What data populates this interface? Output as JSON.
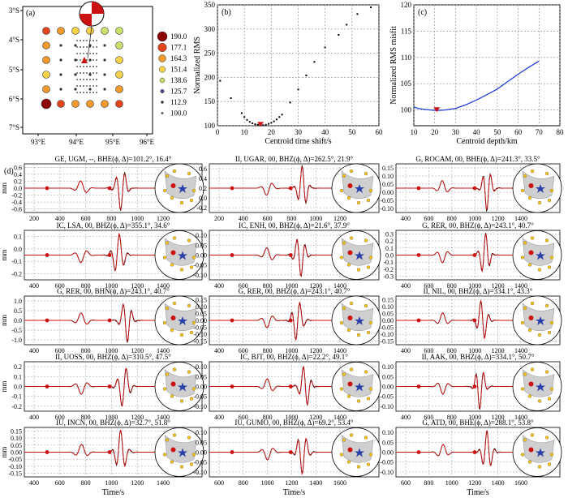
{
  "colors": {
    "red": "#cc1111",
    "black": "#000000",
    "blue": "#1f3fd6",
    "land": "#cfcfcf",
    "dot": "#f2c21a",
    "star": "#2b3fa8",
    "pink": "#f2a0b0"
  },
  "panel_a": {
    "label": "(a)",
    "lat_ticks": [
      "3°S",
      "4°S",
      "5°S",
      "6°S",
      "7°S"
    ],
    "lon_ticks": [
      "93°E",
      "94°E",
      "95°E",
      "96°E"
    ],
    "legend": [
      "190.0",
      "177.1",
      "164.3",
      "151.4",
      "138.6",
      "125.7",
      "112.9",
      "100.0"
    ],
    "legend_colors": [
      "#8b0000",
      "#e2451e",
      "#f39a2c",
      "#f6d44a",
      "#c9e06a",
      "#5a4a9a",
      "#222222",
      "#666666"
    ]
  },
  "chart_data": [
    {
      "type": "scatter",
      "id": "b",
      "label": "(b)",
      "xlabel": "Centroid time shift/s",
      "ylabel": "Normalized RMS",
      "xlim": [
        0,
        60
      ],
      "ylim": [
        100,
        350
      ],
      "xticks": [
        "0",
        "10",
        "20",
        "30",
        "40",
        "50",
        "60"
      ],
      "yticks": [
        "100",
        "150",
        "200",
        "250",
        "300",
        "350"
      ],
      "x": [
        1,
        5,
        9,
        10,
        11,
        12,
        13,
        14,
        15,
        16,
        17,
        18,
        19,
        20,
        21,
        22,
        23,
        24,
        27,
        30,
        33,
        36,
        40,
        45,
        48,
        52,
        57
      ],
      "y": [
        193,
        157,
        126,
        118,
        112,
        108,
        105,
        103,
        102,
        101,
        101,
        102,
        104,
        106,
        109,
        113,
        118,
        123,
        148,
        175,
        204,
        232,
        262,
        288,
        309,
        331,
        345
      ],
      "best": [
        16,
        101
      ]
    },
    {
      "type": "line",
      "id": "c",
      "label": "(c)",
      "xlabel": "Centroid depth/km",
      "ylabel": "Normalized RMS misfit",
      "xlim": [
        10,
        80
      ],
      "ylim": [
        97,
        120
      ],
      "xticks": [
        "10",
        "20",
        "30",
        "40",
        "50",
        "60",
        "70",
        "80"
      ],
      "yticks": [
        "100",
        "105",
        "110",
        "115",
        "120"
      ],
      "x": [
        10,
        12,
        15,
        18,
        21,
        25,
        30,
        35,
        40,
        45,
        50,
        55,
        60,
        65,
        70
      ],
      "y": [
        100.6,
        100.3,
        100.1,
        100.0,
        99.9,
        100.0,
        100.3,
        101.0,
        101.9,
        102.9,
        104.0,
        105.4,
        106.8,
        108.1,
        109.3
      ],
      "best": [
        21,
        99.9
      ]
    }
  ],
  "panel_d": {
    "label": "(d)",
    "y_unit": "mm",
    "x_label": "Time/s"
  },
  "waves": [
    {
      "title": "GE, UGM, --, BHE(ϕ, Δ)=101.2°, 16.4°",
      "yticks": [
        "0.6",
        "0.4",
        "0.2",
        "0.0",
        "-0.2",
        "-0.4",
        "-0.6"
      ],
      "xticks": [
        "200",
        "400",
        "600",
        "800",
        "1000",
        "1200"
      ]
    },
    {
      "title": "II, UGAR, 00, BHZ(ϕ, Δ)=262.5°, 21.9°",
      "yticks": [
        "0.6",
        "0.4",
        "0.2",
        "0.0",
        "-0.2"
      ],
      "xticks": [
        "200",
        "400",
        "600",
        "800",
        "1000",
        "1200"
      ]
    },
    {
      "title": "G, ROCAM, 00, BHE(ϕ, Δ)=241.3°, 33.5°",
      "yticks": [
        "0.15",
        "0.10",
        "0.05",
        "0.00",
        "-0.05",
        "-0.10"
      ],
      "xticks": [
        "400",
        "600",
        "800",
        "1000",
        "1200",
        "1400"
      ]
    },
    {
      "title": "IC, LSA, 00, BHZ(ϕ, Δ)=355.1°, 34.6°",
      "yticks": [
        "0.1",
        "0.0",
        "-0.1",
        "-0.2"
      ],
      "xticks": [
        "400",
        "600",
        "800",
        "1000",
        "1200",
        "1400"
      ]
    },
    {
      "title": "IC, ENH, 00, BHZ(ϕ, Δ)=21.6°, 37.9°",
      "yticks": [
        "0.10",
        "0.05",
        "0.00",
        "-0.05",
        "-0.10"
      ],
      "xticks": [
        "400",
        "600",
        "800",
        "1000",
        "1200",
        "1400"
      ]
    },
    {
      "title": "G, RER, 00, BHZ(ϕ, Δ)=243.1°, 40.7°",
      "yticks": [
        "0.3",
        "0.2",
        "0.1",
        "0.0",
        "-0.1",
        "-0.2",
        "-0.3"
      ],
      "xticks": [
        "400",
        "600",
        "800",
        "1000",
        "1200",
        "1400"
      ]
    },
    {
      "title": "G, RER, 00, BHN(ϕ, Δ)=243.1°, 40.7°",
      "yticks": [
        "1.0",
        "0.5",
        "0.0",
        "-0.5",
        "-1.0"
      ],
      "xticks": [
        "400",
        "600",
        "800",
        "1000",
        "1200",
        "1400"
      ]
    },
    {
      "title": "G, RER, 00, BHZ(ϕ, Δ)=243.1°, 40.7°",
      "yticks": [
        "0.15",
        "0.10",
        "0.05",
        "0.00",
        "-0.05",
        "-0.10",
        "-0.15"
      ],
      "xticks": [
        "400",
        "600",
        "800",
        "1000",
        "1200",
        "1400"
      ]
    },
    {
      "title": "II, NIL, 00, BHZ(ϕ, Δ)=334.1°, 43.3°",
      "yticks": [
        "0.15",
        "0.10",
        "0.05",
        "0.00",
        "-0.05",
        "-0.10",
        "-0.15"
      ],
      "xticks": [
        "400",
        "600",
        "800",
        "1000",
        "1200",
        "1400"
      ]
    },
    {
      "title": "II, UOSS, 00, BHZ(ϕ, Δ)=310.5°, 47.5°",
      "yticks": [
        "0.2",
        "0.1",
        "0.0",
        "-0.1",
        "-0.2"
      ],
      "xticks": [
        "400",
        "600",
        "800",
        "1000",
        "1200",
        "1400"
      ]
    },
    {
      "title": "IC, BJT, 00, BHZ(ϕ, Δ)=22.2°, 49.1°",
      "yticks": [
        "0.10",
        "0.05",
        "0.00",
        "-0.05",
        "-0.10"
      ],
      "xticks": [
        "400",
        "600",
        "800",
        "1000",
        "1200",
        "1400"
      ]
    },
    {
      "title": "II, AAK, 00, BHZ(ϕ, Δ)=334.1°, 50.7°",
      "yticks": [
        "0.10",
        "0.05",
        "0.00",
        "-0.05",
        "-0.10"
      ],
      "xticks": [
        "400",
        "600",
        "800",
        "1000",
        "1200",
        "1400"
      ]
    },
    {
      "title": "IU, INCN, 00, BHZ(ϕ, Δ)=32.7°, 51.8°",
      "yticks": [
        "0.15",
        "0.10",
        "0.05",
        "0.00",
        "-0.05",
        "-0.10",
        "-0.15"
      ],
      "xticks": [
        "400",
        "600",
        "800",
        "1000",
        "1200",
        "1400"
      ]
    },
    {
      "title": "IU, GUMO, 00, BHZ(ϕ, Δ)=69.2°, 53.4°",
      "yticks": [
        "0.10",
        "0.05",
        "0.00",
        "-0.05",
        "-0.10"
      ],
      "xticks": [
        "600",
        "800",
        "1000",
        "1200",
        "1400",
        "1600"
      ]
    },
    {
      "title": "G, ATD, 00, BHE(ϕ, Δ)=288.1°, 53.8°",
      "yticks": [
        "0.10",
        "0.05",
        "0.00",
        "-0.05",
        "-0.10"
      ],
      "xticks": [
        "600",
        "800",
        "1000",
        "1200",
        "1400",
        "1600"
      ]
    }
  ]
}
